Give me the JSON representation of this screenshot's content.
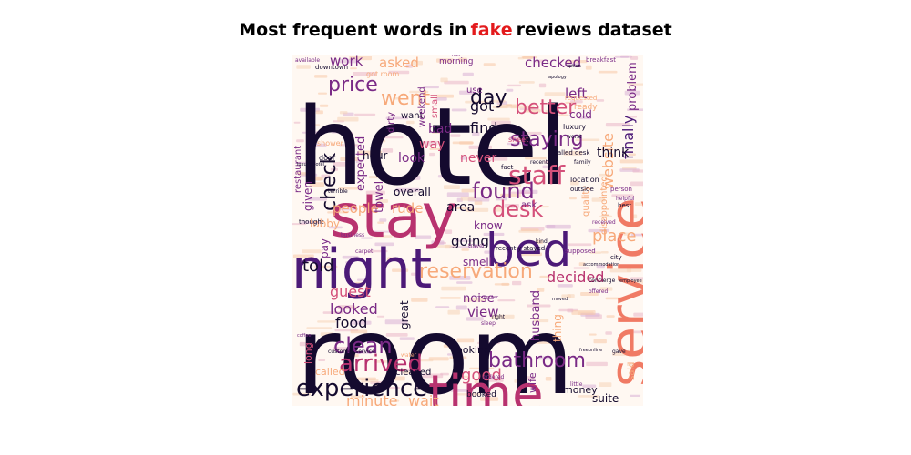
{
  "title": {
    "prefix": "Most frequent words in",
    "highlight": "fake",
    "suffix": "reviews dataset"
  },
  "palette": {
    "dark": "#140a2e",
    "purple": "#4c1a78",
    "violet": "#7a2a86",
    "magenta": "#b8326f",
    "pink": "#d4507a",
    "coral": "#f07a64",
    "peach": "#f7a97a",
    "highlight": "#e31a1c"
  },
  "words": [
    {
      "text": "hotel",
      "color": "dark",
      "weight": 1.0
    },
    {
      "text": "room",
      "color": "dark",
      "weight": 1.0
    },
    {
      "text": "stay",
      "color": "magenta",
      "weight": 0.8
    },
    {
      "text": "night",
      "color": "purple",
      "weight": 0.7
    },
    {
      "text": "time",
      "color": "magenta",
      "weight": 0.7
    },
    {
      "text": "service",
      "color": "coral",
      "weight": 0.6
    },
    {
      "text": "bed",
      "color": "purple",
      "weight": 0.6
    },
    {
      "text": "check",
      "color": "dark",
      "weight": 0.35
    },
    {
      "text": "staff",
      "color": "pink",
      "weight": 0.35
    },
    {
      "text": "reservation",
      "color": "peach",
      "weight": 0.35
    },
    {
      "text": "experience",
      "color": "dark",
      "weight": 0.35
    },
    {
      "text": "arrived",
      "color": "magenta",
      "weight": 0.35
    },
    {
      "text": "bathroom",
      "color": "violet",
      "weight": 0.35
    },
    {
      "text": "found",
      "color": "violet",
      "weight": 0.3
    },
    {
      "text": "desk",
      "color": "pink",
      "weight": 0.3
    },
    {
      "text": "went",
      "color": "peach",
      "weight": 0.3
    },
    {
      "text": "day",
      "color": "dark",
      "weight": 0.3
    },
    {
      "text": "better",
      "color": "pink",
      "weight": 0.3
    },
    {
      "text": "price",
      "color": "violet",
      "weight": 0.28
    },
    {
      "text": "clean",
      "color": "violet",
      "weight": 0.28
    },
    {
      "text": "finally",
      "color": "purple",
      "weight": 0.25
    },
    {
      "text": "staying",
      "color": "violet",
      "weight": 0.25
    },
    {
      "text": "place",
      "color": "peach",
      "weight": 0.25
    },
    {
      "text": "website",
      "color": "peach",
      "weight": 0.25
    },
    {
      "text": "told",
      "color": "dark",
      "weight": 0.22
    },
    {
      "text": "good",
      "color": "pink",
      "weight": 0.22
    },
    {
      "text": "minute",
      "color": "peach",
      "weight": 0.2
    },
    {
      "text": "wait",
      "color": "peach",
      "weight": 0.2
    },
    {
      "text": "food",
      "color": "dark",
      "weight": 0.2
    },
    {
      "text": "looked",
      "color": "violet",
      "weight": 0.2
    },
    {
      "text": "guest",
      "color": "pink",
      "weight": 0.2
    },
    {
      "text": "view",
      "color": "violet",
      "weight": 0.18
    },
    {
      "text": "going",
      "color": "dark",
      "weight": 0.18
    },
    {
      "text": "decided",
      "color": "magenta",
      "weight": 0.18
    },
    {
      "text": "got",
      "color": "dark",
      "weight": 0.18
    },
    {
      "text": "find",
      "color": "dark",
      "weight": 0.18
    },
    {
      "text": "checked",
      "color": "violet",
      "weight": 0.18
    },
    {
      "text": "left",
      "color": "violet",
      "weight": 0.16
    },
    {
      "text": "asked",
      "color": "peach",
      "weight": 0.16
    },
    {
      "text": "work",
      "color": "violet",
      "weight": 0.16
    },
    {
      "text": "people",
      "color": "peach",
      "weight": 0.16
    },
    {
      "text": "rude",
      "color": "peach",
      "weight": 0.16
    },
    {
      "text": "area",
      "color": "dark",
      "weight": 0.15
    },
    {
      "text": "never",
      "color": "pink",
      "weight": 0.15
    },
    {
      "text": "look",
      "color": "violet",
      "weight": 0.15
    },
    {
      "text": "way",
      "color": "pink",
      "weight": 0.15
    },
    {
      "text": "bad",
      "color": "violet",
      "weight": 0.15
    },
    {
      "text": "expected",
      "color": "violet",
      "weight": 0.14
    },
    {
      "text": "husband",
      "color": "violet",
      "weight": 0.14
    },
    {
      "text": "noise",
      "color": "violet",
      "weight": 0.14
    },
    {
      "text": "suite",
      "color": "dark",
      "weight": 0.13
    },
    {
      "text": "money",
      "color": "dark",
      "weight": 0.12
    },
    {
      "text": "think",
      "color": "dark",
      "weight": 0.14
    },
    {
      "text": "problem",
      "color": "violet",
      "weight": 0.13
    },
    {
      "text": "cold",
      "color": "violet",
      "weight": 0.13
    },
    {
      "text": "hour",
      "color": "dark",
      "weight": 0.13
    },
    {
      "text": "towel",
      "color": "violet",
      "weight": 0.13
    },
    {
      "text": "overall",
      "color": "dark",
      "weight": 0.12
    },
    {
      "text": "given",
      "color": "violet",
      "weight": 0.12
    },
    {
      "text": "lobby",
      "color": "peach",
      "weight": 0.12
    },
    {
      "text": "pay",
      "color": "violet",
      "weight": 0.12
    },
    {
      "text": "know",
      "color": "violet",
      "weight": 0.12
    },
    {
      "text": "smell",
      "color": "violet",
      "weight": 0.12
    },
    {
      "text": "great",
      "color": "dark",
      "weight": 0.12
    },
    {
      "text": "thing",
      "color": "peach",
      "weight": 0.12
    },
    {
      "text": "looking",
      "color": "dark",
      "weight": 0.11
    },
    {
      "text": "cleaned",
      "color": "dark",
      "weight": 0.1
    },
    {
      "text": "called",
      "color": "peach",
      "weight": 0.11
    },
    {
      "text": "long",
      "color": "pink",
      "weight": 0.11
    },
    {
      "text": "restaurant",
      "color": "violet",
      "weight": 0.1
    },
    {
      "text": "wife",
      "color": "violet",
      "weight": 0.11
    },
    {
      "text": "booked",
      "color": "dark",
      "weight": 0.09
    },
    {
      "text": "quality",
      "color": "peach",
      "weight": 0.1
    },
    {
      "text": "disappointed",
      "color": "peach",
      "weight": 0.1
    },
    {
      "text": "said",
      "color": "peach",
      "weight": 0.1
    },
    {
      "text": "ask",
      "color": "violet",
      "weight": 0.1
    },
    {
      "text": "use",
      "color": "violet",
      "weight": 0.1
    },
    {
      "text": "want",
      "color": "dark",
      "weight": 0.1
    },
    {
      "text": "dirty",
      "color": "violet",
      "weight": 0.1
    },
    {
      "text": "weekend",
      "color": "violet",
      "weight": 0.1
    },
    {
      "text": "small",
      "color": "pink",
      "weight": 0.1
    },
    {
      "text": "morning",
      "color": "violet",
      "weight": 0.09
    },
    {
      "text": "ready",
      "color": "peach",
      "weight": 0.09
    },
    {
      "text": "luxury",
      "color": "dark",
      "weight": 0.08
    },
    {
      "text": "shower",
      "color": "peach",
      "weight": 0.08
    },
    {
      "text": "door",
      "color": "dark",
      "weight": 0.08
    },
    {
      "text": "got room",
      "color": "peach",
      "weight": 0.08
    },
    {
      "text": "downtown",
      "color": "dark",
      "weight": 0.07
    },
    {
      "text": "breakfast",
      "color": "violet",
      "weight": 0.07
    },
    {
      "text": "requested",
      "color": "peach",
      "weight": 0.07
    },
    {
      "text": "location",
      "color": "dark",
      "weight": 0.08
    },
    {
      "text": "called desk",
      "color": "dark",
      "weight": 0.07
    },
    {
      "text": "outside",
      "color": "dark",
      "weight": 0.07
    },
    {
      "text": "sheet",
      "color": "pink",
      "weight": 0.08
    },
    {
      "text": "fact",
      "color": "dark",
      "weight": 0.07
    },
    {
      "text": "recently",
      "color": "dark",
      "weight": 0.06
    },
    {
      "text": "person",
      "color": "violet",
      "weight": 0.07
    },
    {
      "text": "helpful",
      "color": "violet",
      "weight": 0.06
    },
    {
      "text": "best",
      "color": "dark",
      "weight": 0.07
    },
    {
      "text": "received",
      "color": "violet",
      "weight": 0.06
    },
    {
      "text": "supposed",
      "color": "violet",
      "weight": 0.07
    },
    {
      "text": "recently stayed",
      "color": "dark",
      "weight": 0.07
    },
    {
      "text": "kind",
      "color": "dark",
      "weight": 0.06
    },
    {
      "text": "city",
      "color": "dark",
      "weight": 0.07
    },
    {
      "text": "concierge",
      "color": "dark",
      "weight": 0.06
    },
    {
      "text": "offered",
      "color": "violet",
      "weight": 0.06
    },
    {
      "text": "customer service",
      "color": "dark",
      "weight": 0.06
    },
    {
      "text": "water",
      "color": "peach",
      "weight": 0.06
    },
    {
      "text": "ordered",
      "color": "violet",
      "weight": 0.06
    },
    {
      "text": "little",
      "color": "violet",
      "weight": 0.06
    },
    {
      "text": "gave",
      "color": "dark",
      "weight": 0.06
    },
    {
      "text": "thought",
      "color": "dark",
      "weight": 0.07
    },
    {
      "text": "business",
      "color": "violet",
      "weight": 0.06
    },
    {
      "text": "accommodation",
      "color": "dark",
      "weight": 0.05
    },
    {
      "text": "right",
      "color": "dark",
      "weight": 0.06
    },
    {
      "text": "sleep",
      "color": "violet",
      "weight": 0.06
    },
    {
      "text": "computer",
      "color": "violet",
      "weight": 0.05
    },
    {
      "text": "carpet",
      "color": "violet",
      "weight": 0.06
    },
    {
      "text": "travel",
      "color": "violet",
      "weight": 0.06
    },
    {
      "text": "coffee",
      "color": "violet",
      "weight": 0.05
    },
    {
      "text": "option",
      "color": "dark",
      "weight": 0.05
    },
    {
      "text": "worst",
      "color": "dark",
      "weight": 0.06
    },
    {
      "text": "family",
      "color": "dark",
      "weight": 0.06
    },
    {
      "text": "terrible",
      "color": "dark",
      "weight": 0.06
    },
    {
      "text": "luxury hotel",
      "color": "dark",
      "weight": 0.05
    },
    {
      "text": "available",
      "color": "violet",
      "weight": 0.06
    },
    {
      "text": "hair",
      "color": "violet",
      "weight": 0.05
    },
    {
      "text": "free",
      "color": "dark",
      "weight": 0.05
    },
    {
      "text": "online",
      "color": "dark",
      "weight": 0.05
    },
    {
      "text": "employee",
      "color": "dark",
      "weight": 0.05
    },
    {
      "text": "moved",
      "color": "dark",
      "weight": 0.05
    },
    {
      "text": "apology",
      "color": "dark",
      "weight": 0.05
    }
  ]
}
